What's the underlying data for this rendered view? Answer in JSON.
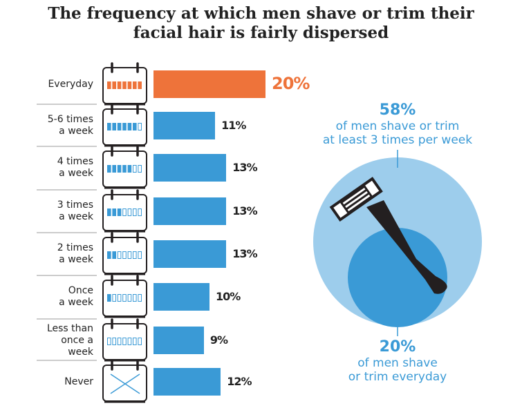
{
  "chart_data": {
    "type": "bar",
    "title_lines": [
      "The frequency at which men shave or trim their",
      "facial hair is fairly dispersed"
    ],
    "categories": [
      [
        "Everyday"
      ],
      [
        "5-6 times",
        "a week"
      ],
      [
        "4 times",
        "a week"
      ],
      [
        "3 times",
        "a week"
      ],
      [
        "2 times",
        "a week"
      ],
      [
        "Once",
        "a week"
      ],
      [
        "Less than",
        "once a",
        "week"
      ],
      [
        "Never"
      ]
    ],
    "values": [
      20,
      11,
      13,
      13,
      13,
      10,
      9,
      12
    ],
    "value_labels": [
      "20%",
      "11%",
      "13%",
      "13%",
      "13%",
      "10%",
      "9%",
      "12%"
    ],
    "calendar_filled_days": [
      7,
      6,
      5,
      3,
      2,
      1,
      0,
      "x"
    ],
    "highlight_index": 0,
    "colors": {
      "highlight": "#ee733a",
      "bar": "#3a9ad6",
      "circle_outer": "#9dcdec",
      "circle_inner": "#3a9ad6",
      "razor": "#231f20"
    },
    "callouts": {
      "outer": {
        "value": "58%",
        "lines": [
          "of men shave or trim",
          "at least 3 times per week"
        ]
      },
      "inner": {
        "value": "20%",
        "lines": [
          "of men shave",
          "or trim everyday"
        ]
      }
    }
  }
}
